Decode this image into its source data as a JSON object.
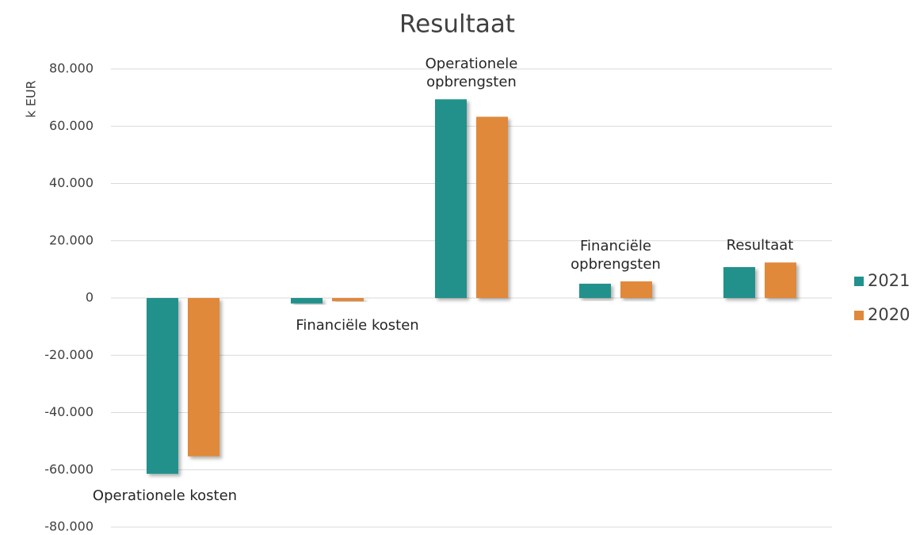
{
  "chart_data": {
    "type": "bar",
    "title": "Resultaat",
    "y_label": "k EUR",
    "categories": [
      "Operationele kosten",
      "Financiële kosten",
      "Operationele opbrengsten",
      "Financiële opbrengsten",
      "Resultaat"
    ],
    "series": [
      {
        "name": "2021",
        "color": "#20918b",
        "values": [
          -61400,
          -1900,
          69400,
          5000,
          10800
        ]
      },
      {
        "name": "2020",
        "color": "#e0893a",
        "values": [
          -55300,
          -1100,
          63300,
          5800,
          12400
        ]
      }
    ],
    "ylim": [
      -80000,
      80000
    ],
    "yticks": [
      {
        "value": -80000,
        "label": "-80.000"
      },
      {
        "value": -60000,
        "label": "-60.000"
      },
      {
        "value": -40000,
        "label": "-40.000"
      },
      {
        "value": -20000,
        "label": "-20.000"
      },
      0,
      {
        "value": 20000,
        "label": "20.000"
      },
      {
        "value": 40000,
        "label": "40.000"
      },
      {
        "value": 60000,
        "label": "60.000"
      },
      {
        "value": 80000,
        "label": "80.000"
      }
    ],
    "grid": true,
    "legend": "right"
  }
}
